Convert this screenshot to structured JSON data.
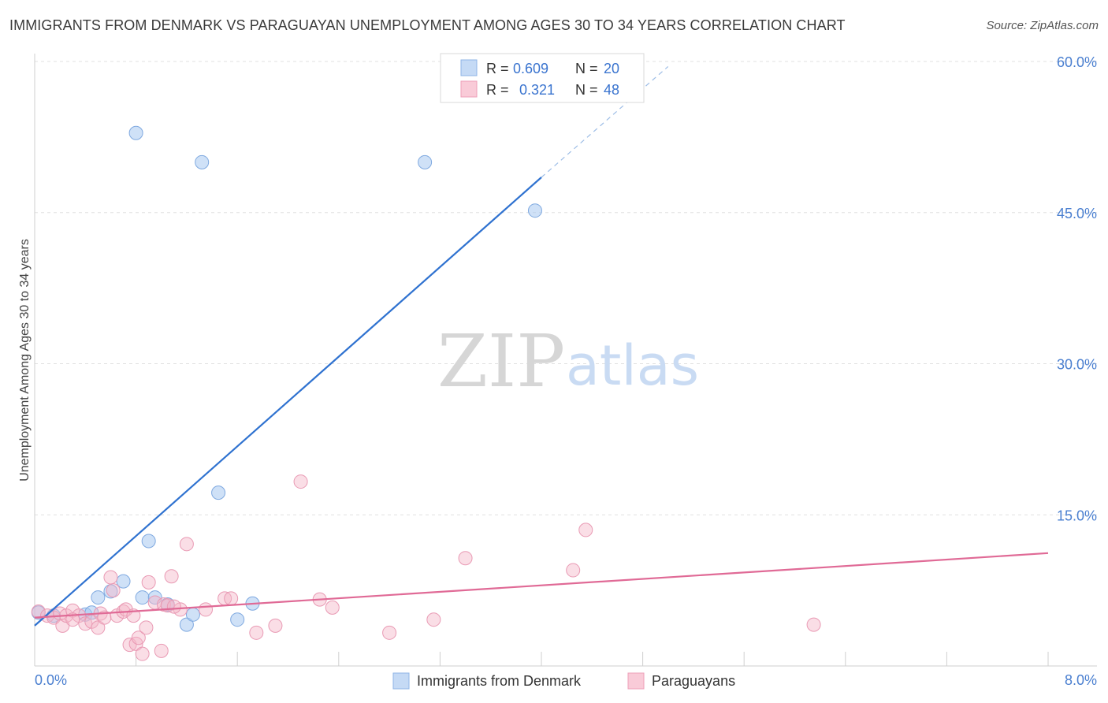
{
  "title": "IMMIGRANTS FROM DENMARK VS PARAGUAYAN UNEMPLOYMENT AMONG AGES 30 TO 34 YEARS CORRELATION CHART",
  "source": "Source: ZipAtlas.com",
  "watermark": {
    "part1": "ZIP",
    "part2": "atlas"
  },
  "colors": {
    "blue": "#a8c8f0",
    "blue_line": "#2f72d0",
    "pink": "#f4b6c8",
    "pink_line": "#e06a96",
    "axis_text": "#4a7fd0",
    "grid": "#e0e0e0"
  },
  "legend_box": {
    "rows": [
      {
        "r_label": "R =",
        "r_value": "0.609",
        "n_label": "N =",
        "n_value": "20"
      },
      {
        "r_label": "R =",
        "r_value": "0.321",
        "n_label": "N =",
        "n_value": "48"
      }
    ]
  },
  "chart_data": {
    "type": "scatter",
    "xlabel": "",
    "ylabel": "Unemployment Among Ages 30 to 34 years",
    "xlim": [
      0,
      8
    ],
    "ylim": [
      0,
      60
    ],
    "x_tick_labels": [
      "0.0%",
      "8.0%"
    ],
    "y_ticks": [
      15,
      30,
      45,
      60
    ],
    "y_tick_labels": [
      "15.0%",
      "30.0%",
      "45.0%",
      "60.0%"
    ],
    "legend": [
      "Immigrants from Denmark",
      "Paraguayans"
    ],
    "series": [
      {
        "name": "Immigrants from Denmark",
        "color": "#a8c8f0",
        "r": 0.609,
        "n": 20,
        "trend": {
          "x": [
            0.0,
            4.0
          ],
          "y": [
            4.0,
            48.5
          ],
          "dashed_to": [
            5.0,
            59.5
          ]
        },
        "points": [
          [
            0.03,
            5.3
          ],
          [
            0.15,
            5.0
          ],
          [
            0.4,
            5.1
          ],
          [
            0.45,
            5.3
          ],
          [
            0.5,
            6.8
          ],
          [
            0.6,
            7.4
          ],
          [
            0.7,
            8.4
          ],
          [
            0.8,
            52.9
          ],
          [
            0.9,
            12.4
          ],
          [
            0.85,
            6.8
          ],
          [
            0.95,
            6.8
          ],
          [
            1.05,
            6.1
          ],
          [
            1.2,
            4.1
          ],
          [
            1.25,
            5.1
          ],
          [
            1.32,
            50.0
          ],
          [
            1.45,
            17.2
          ],
          [
            1.6,
            4.6
          ],
          [
            1.72,
            6.2
          ],
          [
            3.08,
            50.0
          ],
          [
            3.95,
            45.2
          ]
        ]
      },
      {
        "name": "Paraguayans",
        "color": "#f4b6c8",
        "r": 0.321,
        "n": 48,
        "trend": {
          "x": [
            0.0,
            8.0
          ],
          "y": [
            4.8,
            11.2
          ]
        },
        "points": [
          [
            0.03,
            5.4
          ],
          [
            0.1,
            5.0
          ],
          [
            0.15,
            4.8
          ],
          [
            0.2,
            5.2
          ],
          [
            0.22,
            4.0
          ],
          [
            0.25,
            5.0
          ],
          [
            0.3,
            5.5
          ],
          [
            0.35,
            5.0
          ],
          [
            0.4,
            4.2
          ],
          [
            0.45,
            4.4
          ],
          [
            0.5,
            3.8
          ],
          [
            0.52,
            5.2
          ],
          [
            0.55,
            4.8
          ],
          [
            0.6,
            8.8
          ],
          [
            0.62,
            7.5
          ],
          [
            0.65,
            5.0
          ],
          [
            0.7,
            5.4
          ],
          [
            0.72,
            5.6
          ],
          [
            0.75,
            2.1
          ],
          [
            0.78,
            5.0
          ],
          [
            0.8,
            2.2
          ],
          [
            0.82,
            2.8
          ],
          [
            0.85,
            1.2
          ],
          [
            0.88,
            3.8
          ],
          [
            0.9,
            8.3
          ],
          [
            0.95,
            6.3
          ],
          [
            1.0,
            1.5
          ],
          [
            1.02,
            6.1
          ],
          [
            1.05,
            6.0
          ],
          [
            1.08,
            8.9
          ],
          [
            1.15,
            5.6
          ],
          [
            1.2,
            12.1
          ],
          [
            1.35,
            5.6
          ],
          [
            1.5,
            6.7
          ],
          [
            1.55,
            6.7
          ],
          [
            1.75,
            3.3
          ],
          [
            1.9,
            4.0
          ],
          [
            2.1,
            18.3
          ],
          [
            2.25,
            6.6
          ],
          [
            2.35,
            5.8
          ],
          [
            2.8,
            3.3
          ],
          [
            3.15,
            4.6
          ],
          [
            3.4,
            10.7
          ],
          [
            4.25,
            9.5
          ],
          [
            4.35,
            13.5
          ],
          [
            6.15,
            4.1
          ],
          [
            0.3,
            4.6
          ],
          [
            1.1,
            5.9
          ]
        ]
      }
    ]
  }
}
